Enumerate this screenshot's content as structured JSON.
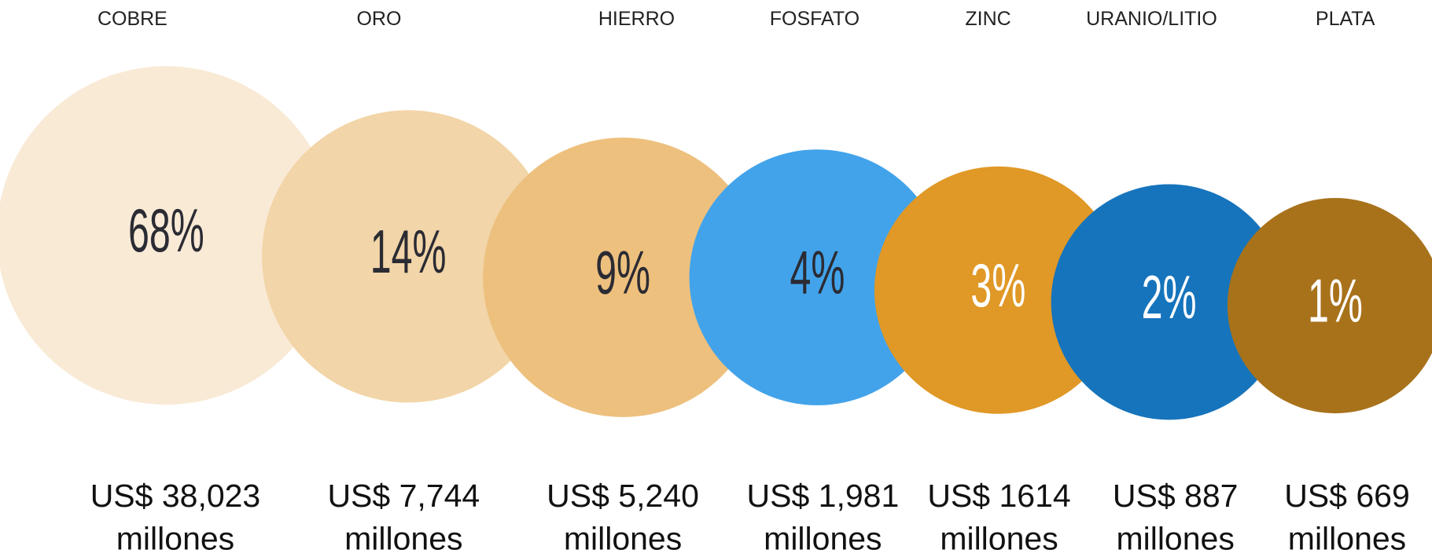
{
  "chart_data": {
    "type": "bubble",
    "categories": [
      "COBRE",
      "ORO",
      "HIERRO",
      "FOSFATO",
      "ZINC",
      "URANIO/LITIO",
      "PLATA"
    ],
    "values": [
      68,
      14,
      9,
      4,
      3,
      2,
      1
    ],
    "value_labels": [
      "68%",
      "14%",
      "9%",
      "4%",
      "3%",
      "2%",
      "1%"
    ],
    "amount_labels": [
      "US$ 38,023",
      "US$ 7,744",
      "US$ 5,240",
      "US$ 1,981",
      "US$ 1614",
      "US$ 887",
      "US$ 669"
    ],
    "amount_unit": "millones",
    "colors": [
      "#f9ead6",
      "#f2d5a8",
      "#edc07e",
      "#42a3ea",
      "#e09826",
      "#1674bc",
      "#a8721b"
    ],
    "label_colors": [
      "#2b2b33",
      "#2b2b33",
      "#2b2b33",
      "#2b2b33",
      "#ffffff",
      "#ffffff",
      "#ffffff"
    ]
  }
}
